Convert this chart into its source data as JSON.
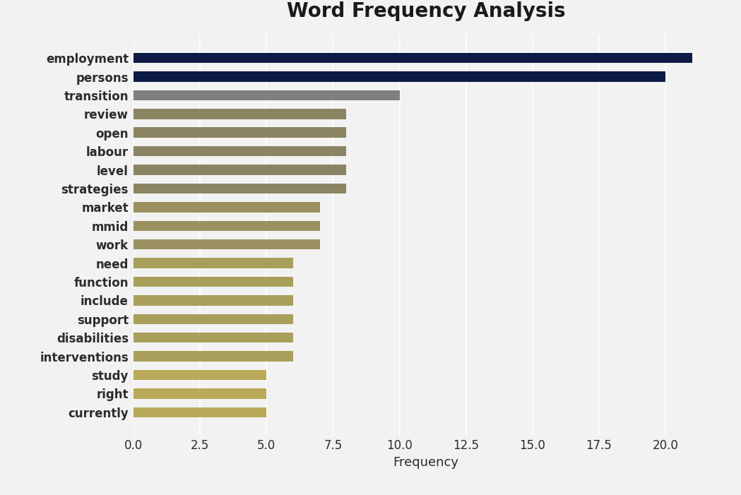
{
  "title": "Word Frequency Analysis",
  "xlabel": "Frequency",
  "categories": [
    "employment",
    "persons",
    "transition",
    "review",
    "open",
    "labour",
    "level",
    "strategies",
    "market",
    "mmid",
    "work",
    "need",
    "function",
    "include",
    "support",
    "disabilities",
    "interventions",
    "study",
    "right",
    "currently"
  ],
  "values": [
    21,
    20,
    10,
    8,
    8,
    8,
    8,
    8,
    7,
    7,
    7,
    6,
    6,
    6,
    6,
    6,
    6,
    5,
    5,
    5
  ],
  "colors": [
    "#0d1b45",
    "#0d1b45",
    "#7f7f7f",
    "#8b8462",
    "#8b8462",
    "#8b8462",
    "#8b8462",
    "#8b8462",
    "#9b9060",
    "#9b9060",
    "#9b9060",
    "#a8a05a",
    "#a8a05a",
    "#a8a05a",
    "#a8a05a",
    "#a8a05a",
    "#a8a05a",
    "#b8aa58",
    "#b8aa58",
    "#b8aa58"
  ],
  "background_color": "#f2f2f2",
  "plot_bg_color": "#f2f2f2",
  "xlim": [
    0,
    22
  ],
  "xticks": [
    0.0,
    2.5,
    5.0,
    7.5,
    10.0,
    12.5,
    15.0,
    17.5,
    20.0
  ],
  "title_fontsize": 20,
  "tick_fontsize": 12,
  "label_fontsize": 13,
  "bar_height": 0.55
}
